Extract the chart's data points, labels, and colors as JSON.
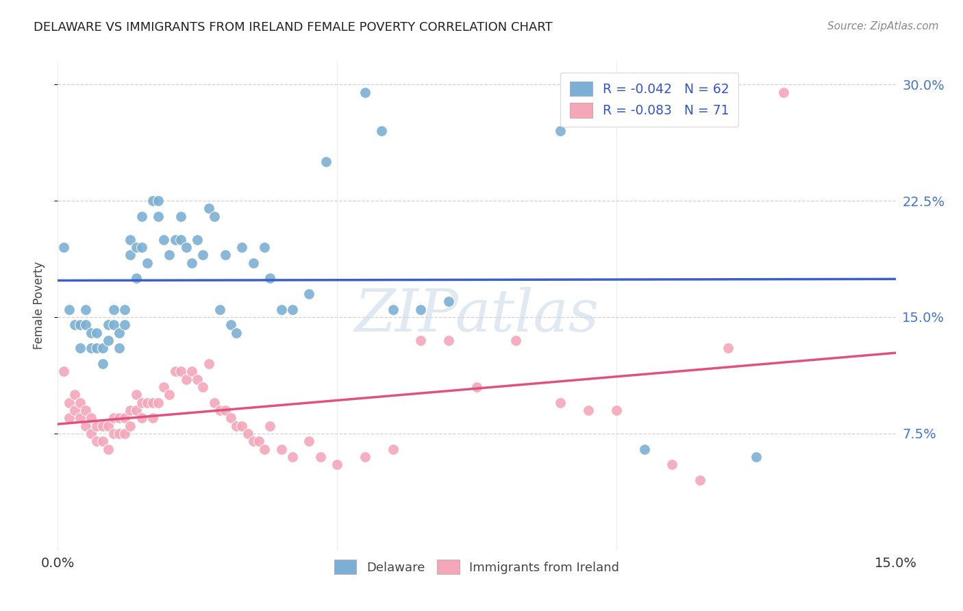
{
  "title": "DELAWARE VS IMMIGRANTS FROM IRELAND FEMALE POVERTY CORRELATION CHART",
  "source": "Source: ZipAtlas.com",
  "ylabel": "Female Poverty",
  "xlim": [
    0.0,
    0.15
  ],
  "ylim": [
    0.0,
    0.315
  ],
  "yticks": [
    0.075,
    0.15,
    0.225,
    0.3
  ],
  "ytick_labels": [
    "7.5%",
    "15.0%",
    "22.5%",
    "30.0%"
  ],
  "grid_color": "#cccccc",
  "background_color": "#ffffff",
  "watermark": "ZIPatlas",
  "legend_R1": "-0.042",
  "legend_N1": "62",
  "legend_R2": "-0.083",
  "legend_N2": "71",
  "legend_label1": "Delaware",
  "legend_label2": "Immigrants from Ireland",
  "color_delaware": "#7bafd4",
  "color_ireland": "#f4a7b9",
  "trend_color_delaware": "#3a5fcd",
  "trend_color_ireland": "#e05080",
  "delaware_x": [
    0.001,
    0.002,
    0.003,
    0.004,
    0.004,
    0.005,
    0.005,
    0.006,
    0.006,
    0.007,
    0.007,
    0.008,
    0.008,
    0.009,
    0.009,
    0.01,
    0.01,
    0.011,
    0.011,
    0.012,
    0.012,
    0.013,
    0.013,
    0.014,
    0.014,
    0.015,
    0.015,
    0.016,
    0.017,
    0.018,
    0.018,
    0.019,
    0.02,
    0.021,
    0.022,
    0.022,
    0.023,
    0.024,
    0.025,
    0.026,
    0.027,
    0.028,
    0.029,
    0.03,
    0.031,
    0.032,
    0.033,
    0.035,
    0.037,
    0.038,
    0.04,
    0.042,
    0.045,
    0.048,
    0.055,
    0.058,
    0.06,
    0.065,
    0.07,
    0.09,
    0.105,
    0.125
  ],
  "delaware_y": [
    0.195,
    0.155,
    0.145,
    0.145,
    0.13,
    0.155,
    0.145,
    0.14,
    0.13,
    0.14,
    0.13,
    0.13,
    0.12,
    0.145,
    0.135,
    0.155,
    0.145,
    0.14,
    0.13,
    0.145,
    0.155,
    0.2,
    0.19,
    0.195,
    0.175,
    0.215,
    0.195,
    0.185,
    0.225,
    0.225,
    0.215,
    0.2,
    0.19,
    0.2,
    0.2,
    0.215,
    0.195,
    0.185,
    0.2,
    0.19,
    0.22,
    0.215,
    0.155,
    0.19,
    0.145,
    0.14,
    0.195,
    0.185,
    0.195,
    0.175,
    0.155,
    0.155,
    0.165,
    0.25,
    0.295,
    0.27,
    0.155,
    0.155,
    0.16,
    0.27,
    0.065,
    0.06
  ],
  "ireland_x": [
    0.001,
    0.002,
    0.002,
    0.003,
    0.003,
    0.004,
    0.004,
    0.005,
    0.005,
    0.006,
    0.006,
    0.007,
    0.007,
    0.008,
    0.008,
    0.009,
    0.009,
    0.01,
    0.01,
    0.011,
    0.011,
    0.012,
    0.012,
    0.013,
    0.013,
    0.014,
    0.014,
    0.015,
    0.015,
    0.016,
    0.017,
    0.017,
    0.018,
    0.019,
    0.02,
    0.021,
    0.022,
    0.023,
    0.024,
    0.025,
    0.026,
    0.027,
    0.028,
    0.029,
    0.03,
    0.031,
    0.032,
    0.033,
    0.034,
    0.035,
    0.036,
    0.037,
    0.038,
    0.04,
    0.042,
    0.045,
    0.047,
    0.05,
    0.055,
    0.06,
    0.065,
    0.07,
    0.075,
    0.082,
    0.09,
    0.095,
    0.1,
    0.11,
    0.115,
    0.12,
    0.13
  ],
  "ireland_y": [
    0.115,
    0.095,
    0.085,
    0.1,
    0.09,
    0.095,
    0.085,
    0.09,
    0.08,
    0.085,
    0.075,
    0.08,
    0.07,
    0.08,
    0.07,
    0.08,
    0.065,
    0.085,
    0.075,
    0.085,
    0.075,
    0.085,
    0.075,
    0.09,
    0.08,
    0.1,
    0.09,
    0.095,
    0.085,
    0.095,
    0.095,
    0.085,
    0.095,
    0.105,
    0.1,
    0.115,
    0.115,
    0.11,
    0.115,
    0.11,
    0.105,
    0.12,
    0.095,
    0.09,
    0.09,
    0.085,
    0.08,
    0.08,
    0.075,
    0.07,
    0.07,
    0.065,
    0.08,
    0.065,
    0.06,
    0.07,
    0.06,
    0.055,
    0.06,
    0.065,
    0.135,
    0.135,
    0.105,
    0.135,
    0.095,
    0.09,
    0.09,
    0.055,
    0.045,
    0.13,
    0.295
  ]
}
